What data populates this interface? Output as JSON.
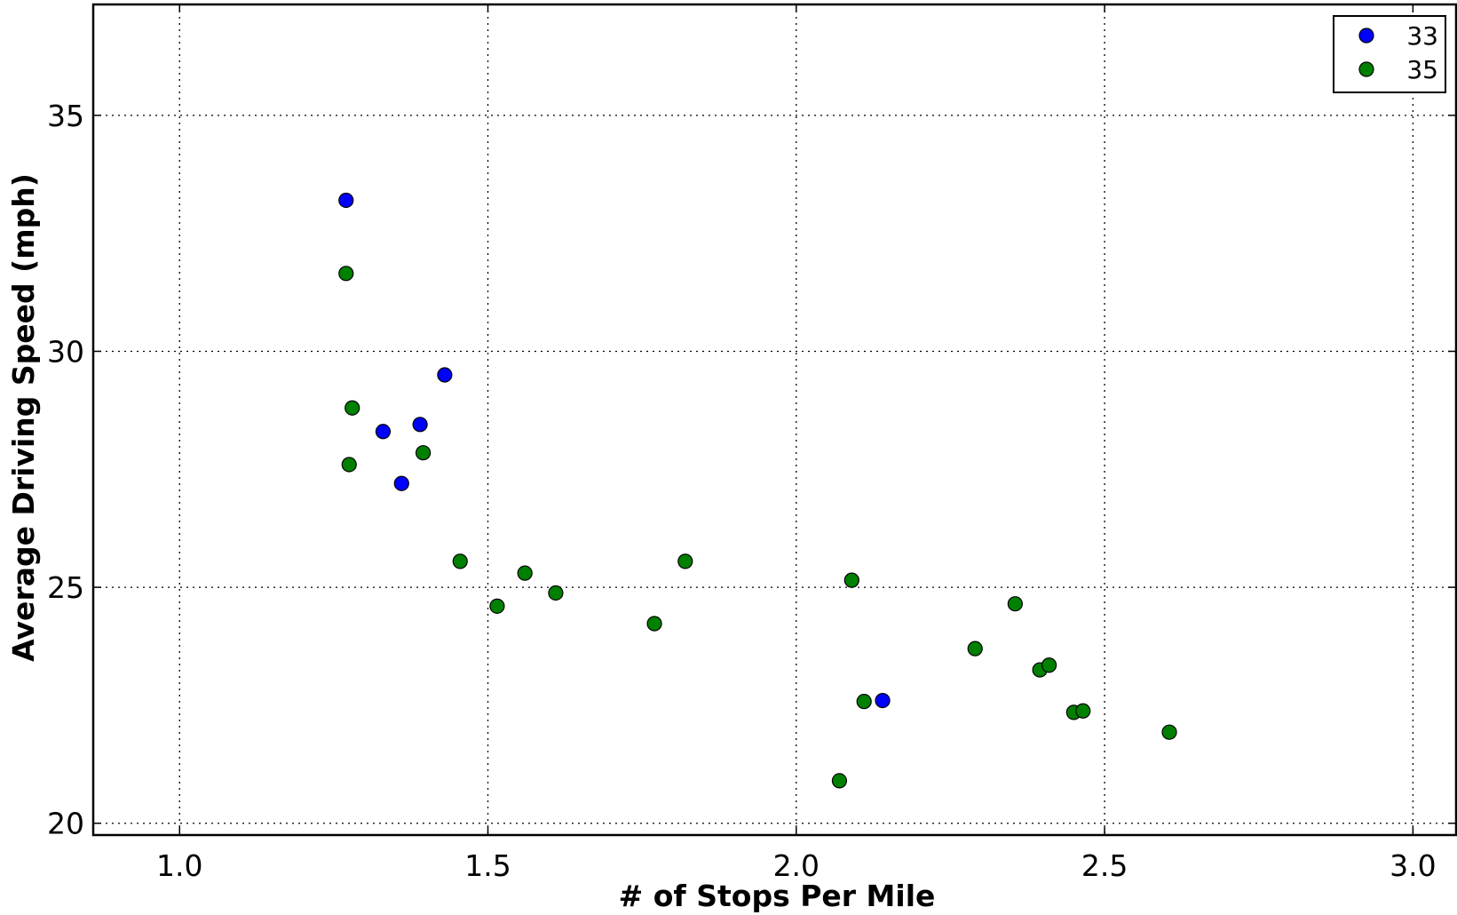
{
  "chart_data": {
    "type": "scatter",
    "title": "",
    "xlabel": "# of Stops Per Mile",
    "ylabel": "Average Driving Speed (mph)",
    "xlim": [
      0.86,
      3.07
    ],
    "ylim": [
      19.75,
      37.35
    ],
    "xticks": [
      1.0,
      1.5,
      2.0,
      2.5,
      3.0
    ],
    "xtick_labels": [
      "1.0",
      "1.5",
      "2.0",
      "2.5",
      "3.0"
    ],
    "yticks": [
      20,
      25,
      30,
      35
    ],
    "ytick_labels": [
      "20",
      "25",
      "30",
      "35"
    ],
    "grid": true,
    "legend_position": "top-right",
    "series": [
      {
        "name": "33",
        "color": "#0000ff",
        "points": [
          {
            "x": 1.27,
            "y": 33.2
          },
          {
            "x": 1.43,
            "y": 29.5
          },
          {
            "x": 1.33,
            "y": 28.3
          },
          {
            "x": 1.39,
            "y": 28.45
          },
          {
            "x": 1.36,
            "y": 27.2
          },
          {
            "x": 2.14,
            "y": 22.6
          }
        ]
      },
      {
        "name": "35",
        "color": "#008000",
        "points": [
          {
            "x": 1.27,
            "y": 31.65
          },
          {
            "x": 1.28,
            "y": 28.8
          },
          {
            "x": 1.275,
            "y": 27.6
          },
          {
            "x": 1.395,
            "y": 27.85
          },
          {
            "x": 1.455,
            "y": 25.55
          },
          {
            "x": 1.515,
            "y": 24.6
          },
          {
            "x": 1.56,
            "y": 25.3
          },
          {
            "x": 1.61,
            "y": 24.88
          },
          {
            "x": 1.77,
            "y": 24.23
          },
          {
            "x": 1.82,
            "y": 25.55
          },
          {
            "x": 2.07,
            "y": 20.9
          },
          {
            "x": 2.09,
            "y": 25.15
          },
          {
            "x": 2.11,
            "y": 22.58
          },
          {
            "x": 2.29,
            "y": 23.7
          },
          {
            "x": 2.355,
            "y": 24.65
          },
          {
            "x": 2.395,
            "y": 23.25
          },
          {
            "x": 2.41,
            "y": 23.35
          },
          {
            "x": 2.45,
            "y": 22.35
          },
          {
            "x": 2.465,
            "y": 22.38
          },
          {
            "x": 2.605,
            "y": 21.93
          }
        ]
      }
    ]
  }
}
